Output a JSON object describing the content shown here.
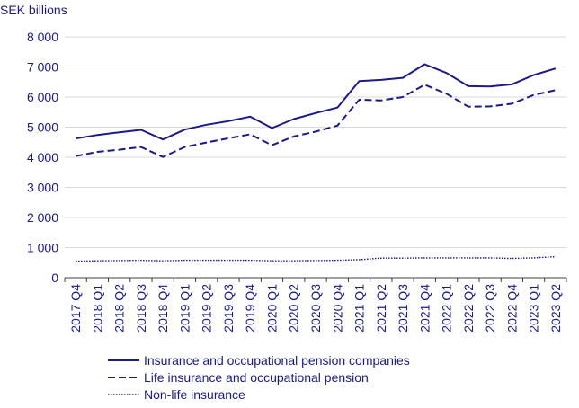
{
  "chart_data": {
    "type": "line",
    "ylabel": "SEK billions",
    "ylim": [
      0,
      8000
    ],
    "yticks": [
      0,
      1000,
      2000,
      3000,
      4000,
      5000,
      6000,
      7000,
      8000
    ],
    "ytick_labels": [
      "0",
      "1 000",
      "2 000",
      "3 000",
      "4 000",
      "5 000",
      "6 000",
      "7 000",
      "8 000"
    ],
    "grid": "horizontal",
    "legend_position": "bottom",
    "categories": [
      "2017 Q4",
      "2018 Q1",
      "2018 Q2",
      "2018 Q3",
      "2018 Q4",
      "2019 Q1",
      "2019 Q2",
      "2019 Q3",
      "2019 Q4",
      "2020 Q1",
      "2020 Q2",
      "2020 Q3",
      "2020 Q4",
      "2021 Q1",
      "2021 Q2",
      "2021 Q3",
      "2021 Q4",
      "2022 Q1",
      "2022 Q2",
      "2022 Q3",
      "2022 Q4",
      "2023 Q1",
      "2023 Q2"
    ],
    "series": [
      {
        "name": "Insurance and occupational pension companies",
        "style": "solid",
        "color": "#1a1a8c",
        "values": [
          4620,
          4740,
          4830,
          4910,
          4590,
          4920,
          5080,
          5200,
          5350,
          4970,
          5270,
          5470,
          5650,
          6530,
          6570,
          6640,
          7090,
          6800,
          6360,
          6350,
          6420,
          6730,
          6950
        ]
      },
      {
        "name": "Life insurance and occupational pension",
        "style": "dashed",
        "color": "#1a1a8c",
        "values": [
          4040,
          4180,
          4250,
          4340,
          4010,
          4340,
          4490,
          4630,
          4760,
          4400,
          4690,
          4850,
          5050,
          5910,
          5890,
          6000,
          6410,
          6110,
          5680,
          5690,
          5780,
          6070,
          6230
        ]
      },
      {
        "name": "Non-life insurance",
        "style": "dotted",
        "color": "#1a1a8c",
        "values": [
          550,
          560,
          570,
          580,
          560,
          580,
          580,
          580,
          580,
          560,
          560,
          570,
          580,
          600,
          650,
          650,
          660,
          660,
          660,
          660,
          640,
          660,
          700
        ]
      }
    ]
  }
}
